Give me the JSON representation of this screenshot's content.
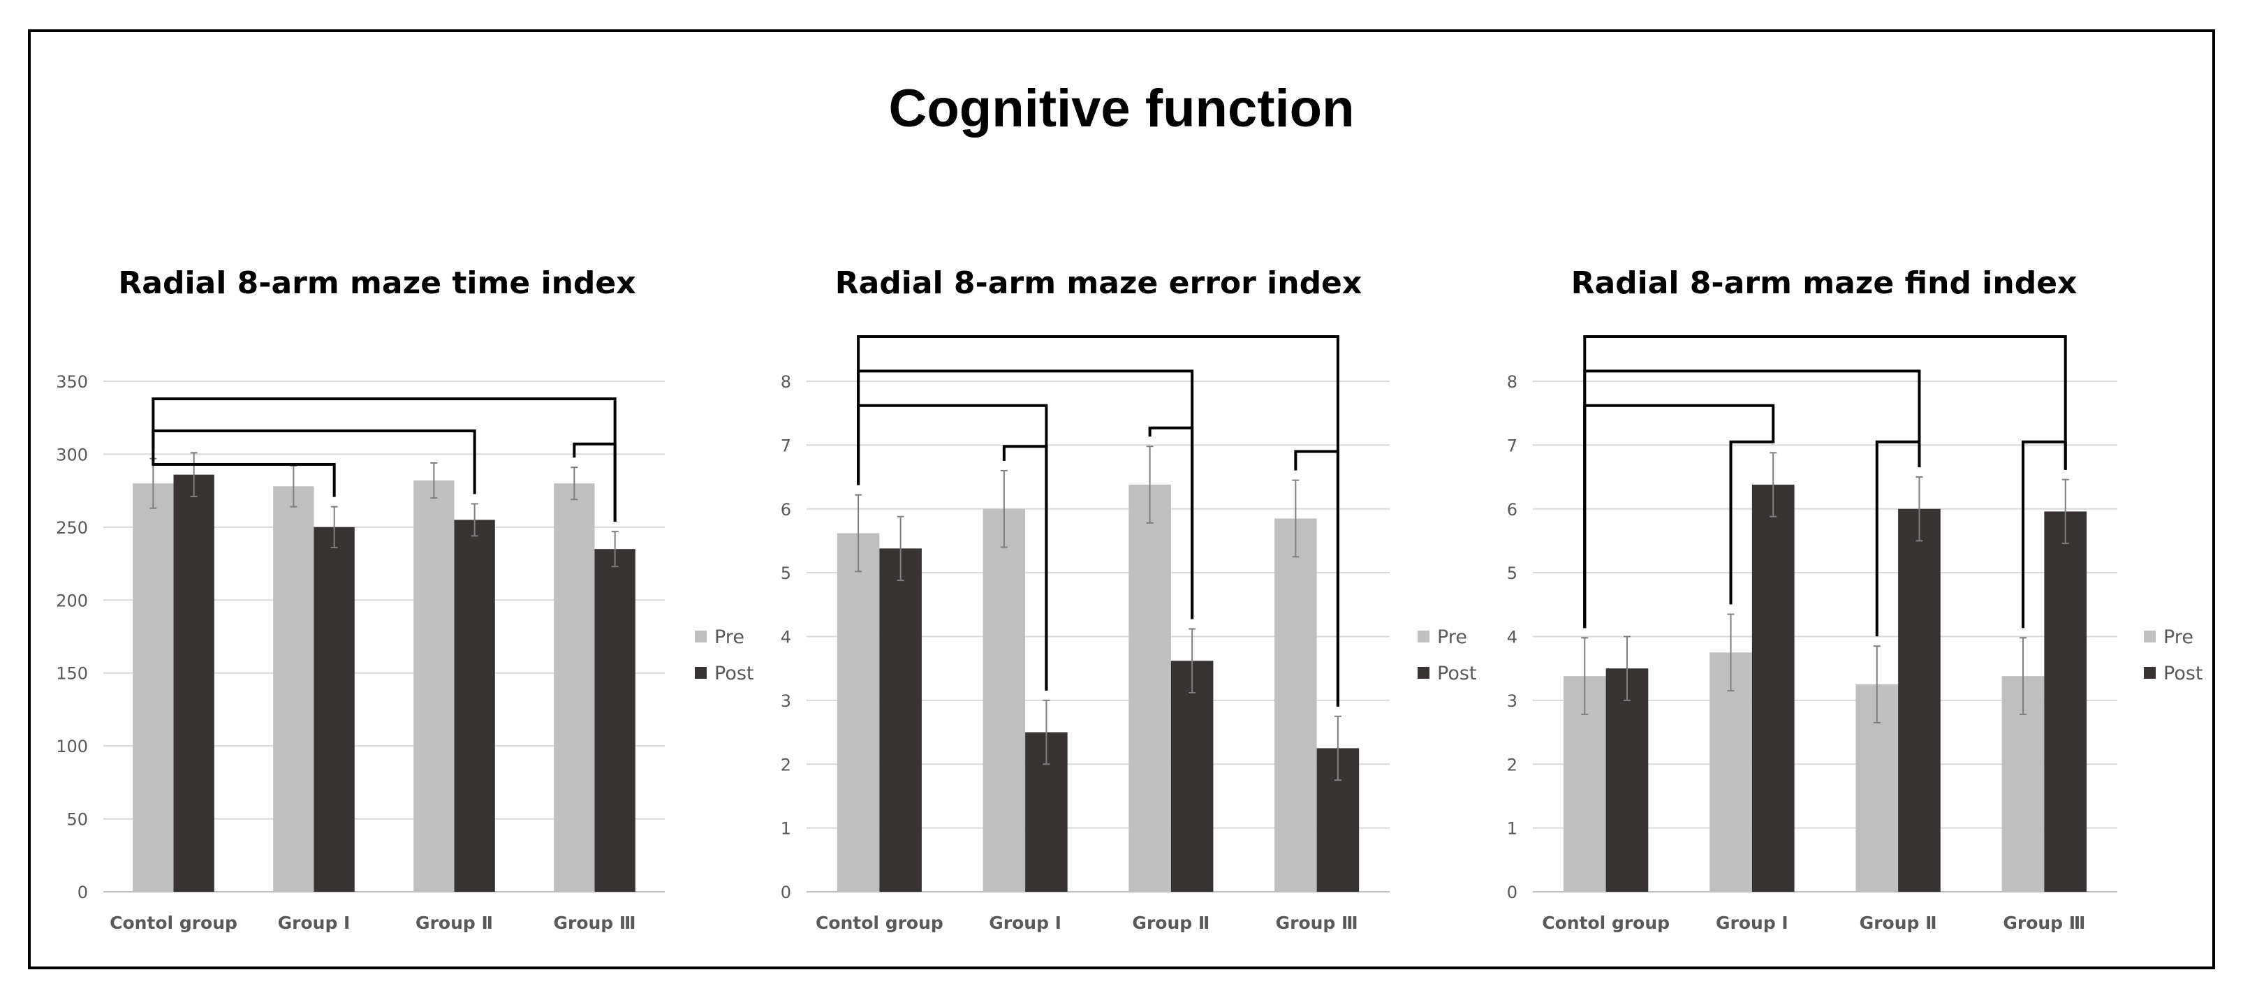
{
  "title": "Cognitive function",
  "colors": {
    "pre": "#bfbfbf",
    "post": "#363332",
    "grid": "#d9d9d9",
    "error_bar": "#7f7f7f",
    "bracket": "#000000"
  },
  "chart_data": [
    {
      "type": "bar",
      "title": "Radial 8-arm maze time index",
      "categories": [
        "Contol group",
        "Group Ⅰ",
        "Group Ⅱ",
        "Group Ⅲ"
      ],
      "series": [
        {
          "name": "Pre",
          "values": [
            280,
            278,
            282,
            280
          ],
          "error": [
            17,
            14,
            12,
            11
          ]
        },
        {
          "name": "Post",
          "values": [
            286,
            250,
            255,
            235
          ],
          "error": [
            15,
            14,
            11,
            12
          ]
        }
      ],
      "ylim": [
        0,
        350
      ],
      "yticks": [
        "0",
        "50",
        "100",
        "150",
        "200",
        "250",
        "300",
        "350"
      ],
      "grid": true,
      "legend": "right",
      "brackets": [
        {
          "from_category": 0,
          "from_series": 0,
          "to_category": 3,
          "to_series": 1,
          "level": 338
        },
        {
          "from_category": 0,
          "from_series": 0,
          "to_category": 2,
          "to_series": 1,
          "level": 316
        },
        {
          "from_category": 0,
          "from_series": 0,
          "to_category": 1,
          "to_series": 1,
          "level": 293
        },
        {
          "from_category": 3,
          "from_series": 0,
          "to_category": 3,
          "to_series": 1,
          "level": 307
        }
      ]
    },
    {
      "type": "bar",
      "title": "Radial 8-arm maze error index",
      "categories": [
        "Contol group",
        "Group Ⅰ",
        "Group Ⅱ",
        "Group Ⅲ"
      ],
      "series": [
        {
          "name": "Pre",
          "values": [
            5.62,
            6.0,
            6.38,
            5.85
          ],
          "error": [
            0.6,
            0.6,
            0.6,
            0.6
          ]
        },
        {
          "name": "Post",
          "values": [
            5.38,
            2.5,
            3.62,
            2.25
          ],
          "error": [
            0.5,
            0.5,
            0.5,
            0.5
          ]
        }
      ],
      "ylim": [
        0,
        8
      ],
      "yticks": [
        "0",
        "1",
        "2",
        "3",
        "4",
        "5",
        "6",
        "7",
        "8"
      ],
      "grid": true,
      "legend": "right",
      "brackets": [
        {
          "from_category": 0,
          "from_series": 0,
          "to_category": 3,
          "to_series": 1,
          "level": 8.7
        },
        {
          "from_category": 0,
          "from_series": 0,
          "to_category": 2,
          "to_series": 1,
          "level": 8.16
        },
        {
          "from_category": 0,
          "from_series": 0,
          "to_category": 1,
          "to_series": 1,
          "level": 7.62
        },
        {
          "from_category": 1,
          "from_series": 0,
          "to_category": 1,
          "to_series": 1,
          "level": 6.98
        },
        {
          "from_category": 2,
          "from_series": 0,
          "to_category": 2,
          "to_series": 1,
          "level": 7.27
        },
        {
          "from_category": 3,
          "from_series": 0,
          "to_category": 3,
          "to_series": 1,
          "level": 6.9
        }
      ]
    },
    {
      "type": "bar",
      "title": "Radial 8-arm maze find index",
      "categories": [
        "Contol group",
        "Group Ⅰ",
        "Group Ⅱ",
        "Group Ⅲ"
      ],
      "series": [
        {
          "name": "Pre",
          "values": [
            3.38,
            3.75,
            3.25,
            3.38
          ],
          "error": [
            0.6,
            0.6,
            0.6,
            0.6
          ]
        },
        {
          "name": "Post",
          "values": [
            3.5,
            6.38,
            6.0,
            5.96
          ],
          "error": [
            0.5,
            0.5,
            0.5,
            0.5
          ]
        }
      ],
      "ylim": [
        0,
        8
      ],
      "yticks": [
        "0",
        "1",
        "2",
        "3",
        "4",
        "5",
        "6",
        "7",
        "8"
      ],
      "grid": true,
      "legend": "right",
      "brackets": [
        {
          "from_category": 0,
          "from_series": 0,
          "to_category": 3,
          "to_series": 1,
          "level": 8.7
        },
        {
          "from_category": 0,
          "from_series": 0,
          "to_category": 2,
          "to_series": 1,
          "level": 8.16
        },
        {
          "from_category": 0,
          "from_series": 0,
          "to_category": 1,
          "to_series": 1,
          "level": 7.62
        },
        {
          "from_category": 1,
          "from_series": 0,
          "to_category": 1,
          "to_series": 1,
          "level": 7.05
        },
        {
          "from_category": 2,
          "from_series": 0,
          "to_category": 2,
          "to_series": 1,
          "level": 7.05
        },
        {
          "from_category": 3,
          "from_series": 0,
          "to_category": 3,
          "to_series": 1,
          "level": 7.05
        }
      ]
    }
  ]
}
